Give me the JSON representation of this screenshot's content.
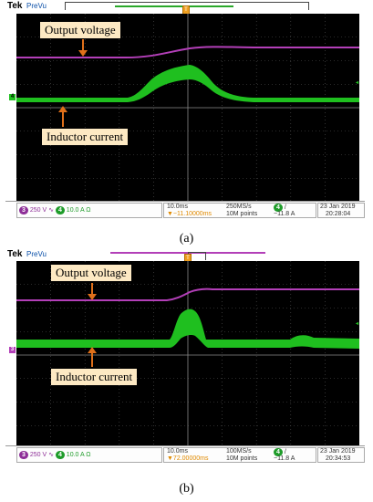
{
  "colors": {
    "output_voltage": "#b33fb8",
    "inductor_current": "#1fbf1f",
    "grid": "#6a6a6a",
    "callout_bg": "#fde9c3",
    "arrow": "#e0701a",
    "ch3_badge": "#8e2f98",
    "ch4_badge": "#1f9c2a",
    "trigger_text": "#e08a00"
  },
  "panels": [
    {
      "brand": "Tek",
      "mode": "PreVu",
      "callout_voltage": "Output voltage",
      "callout_current": "Inductor current",
      "ch3_label": "3",
      "ch3_scale": "250 V",
      "ch3_icon": "bandwidth-icon",
      "ch4_label": "4",
      "ch4_scale": "10.0 A",
      "ch4_icon": "ohm-icon",
      "timebase": "10.0ms",
      "trigger_offset": "▼−11.10000ms",
      "sample_rate": "250MS/s",
      "record_length": "10M points",
      "trigger_channel": "4",
      "trigger_slope": "/",
      "trigger_level": "−11.8 A",
      "date": "23 Jan 2019",
      "time": "20:28:04",
      "caption": "(a)"
    },
    {
      "brand": "Tek",
      "mode": "PreVu",
      "callout_voltage": "Output voltage",
      "callout_current": "Inductor current",
      "ch3_label": "3",
      "ch3_scale": "250 V",
      "ch3_icon": "bandwidth-icon",
      "ch4_label": "4",
      "ch4_scale": "10.0 A",
      "ch4_icon": "ohm-icon",
      "timebase": "10.0ms",
      "trigger_offset": "▼72.00000ms",
      "sample_rate": "100MS/s",
      "record_length": "10M points",
      "trigger_channel": "4",
      "trigger_slope": "/",
      "trigger_level": "−11.8 A",
      "date": "23 Jan 2019",
      "time": "20:34:53",
      "caption": "(b)"
    }
  ]
}
